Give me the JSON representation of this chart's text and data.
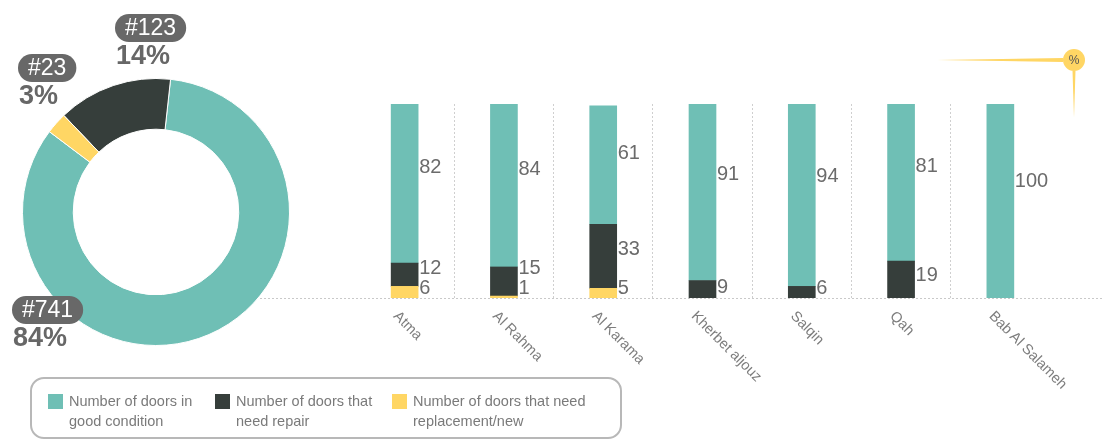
{
  "chart_data": [
    {
      "type": "donut",
      "categories": [
        "Number of doors in good condition",
        "Number of doors that need repair",
        "Number of doors that need replacement/new"
      ],
      "values": [
        741,
        123,
        23
      ],
      "colors": [
        "#6fbfb5",
        "#363e3b",
        "#ffd664"
      ],
      "value_labels": [
        "#741\n84%",
        "#123\n14%",
        "#23\n3%"
      ],
      "legend": "bottom right"
    },
    {
      "type": "bar",
      "stacked": true,
      "categories": [
        "Atma",
        "Al Rahma",
        "Al Karama",
        "Kherbet aljouz",
        "Salqin",
        "Qah",
        "Bab Al Salameh"
      ],
      "series": [
        {
          "color": "#ffd664",
          "values": [
            6,
            1,
            5,
            null,
            null,
            null,
            null
          ]
        },
        {
          "color": "#363e3b",
          "values": [
            12,
            15,
            33,
            9,
            6,
            19,
            null
          ]
        },
        {
          "color": "#6fbfb5",
          "values": [
            82,
            84,
            61,
            91,
            94,
            81,
            100
          ]
        }
      ],
      "ylim": [
        0,
        100
      ],
      "ylabel": "%",
      "data_labels": true,
      "grid": "x",
      "tick_labels": "x"
    }
  ]
}
